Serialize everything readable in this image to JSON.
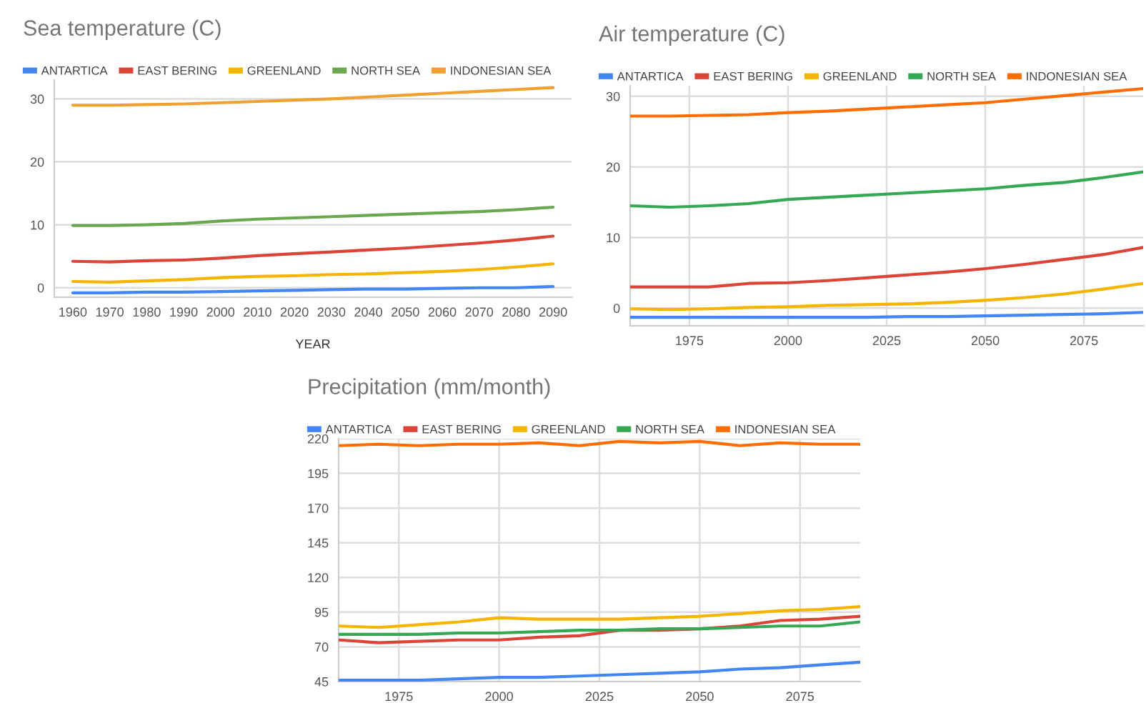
{
  "chart_data": [
    {
      "type": "line",
      "title": "Sea temperature (C)",
      "xlabel": "YEAR",
      "legend": "top",
      "grid": "y",
      "marker": "none",
      "line_style": "solid",
      "x": [
        1960,
        1970,
        1980,
        1990,
        2000,
        2010,
        2020,
        2030,
        2040,
        2050,
        2060,
        2070,
        2080,
        2090
      ],
      "xlim": [
        1955,
        2095
      ],
      "xticks": [
        1960,
        1970,
        1980,
        1990,
        2000,
        2010,
        2020,
        2030,
        2040,
        2050,
        2060,
        2070,
        2080,
        2090
      ],
      "ylim": [
        -1.5,
        33
      ],
      "yticks": [
        0,
        10,
        20,
        30
      ],
      "series": [
        {
          "name": "ANTARTICA",
          "color": "#4285f4",
          "values": [
            -0.8,
            -0.8,
            -0.7,
            -0.7,
            -0.6,
            -0.5,
            -0.4,
            -0.3,
            -0.2,
            -0.2,
            -0.1,
            0.0,
            0.0,
            0.2
          ]
        },
        {
          "name": "EAST BERING",
          "color": "#db4437",
          "values": [
            4.2,
            4.1,
            4.3,
            4.4,
            4.7,
            5.1,
            5.4,
            5.7,
            6.0,
            6.3,
            6.7,
            7.1,
            7.6,
            8.2
          ]
        },
        {
          "name": "GREENLAND",
          "color": "#f4b400",
          "values": [
            1.0,
            0.9,
            1.1,
            1.3,
            1.6,
            1.8,
            1.9,
            2.1,
            2.2,
            2.4,
            2.6,
            2.9,
            3.3,
            3.8
          ]
        },
        {
          "name": "NORTH SEA",
          "color": "#6aa84f",
          "values": [
            9.9,
            9.9,
            10.0,
            10.2,
            10.6,
            10.9,
            11.1,
            11.3,
            11.5,
            11.7,
            11.9,
            12.1,
            12.4,
            12.8
          ]
        },
        {
          "name": "INDONESIAN SEA",
          "color": "#f0a030",
          "values": [
            29.0,
            29.0,
            29.1,
            29.2,
            29.4,
            29.6,
            29.8,
            30.0,
            30.3,
            30.6,
            30.9,
            31.2,
            31.5,
            31.8
          ]
        }
      ]
    },
    {
      "type": "line",
      "title": "Air temperature (C)",
      "legend": "top",
      "grid": true,
      "marker": "none",
      "line_style": "solid",
      "x": [
        1960,
        1970,
        1980,
        1990,
        2000,
        2010,
        2020,
        2030,
        2040,
        2050,
        2060,
        2070,
        2080,
        2090
      ],
      "xlim": [
        1960,
        2090
      ],
      "xticks": [
        1975,
        2000,
        2025,
        2050,
        2075
      ],
      "ylim": [
        -2.5,
        31.5
      ],
      "yticks": [
        0,
        10,
        20,
        30
      ],
      "series": [
        {
          "name": "ANTARTICA",
          "color": "#4285f4",
          "values": [
            -1.3,
            -1.3,
            -1.3,
            -1.3,
            -1.3,
            -1.3,
            -1.3,
            -1.2,
            -1.2,
            -1.1,
            -1.0,
            -0.9,
            -0.8,
            -0.6
          ]
        },
        {
          "name": "EAST BERING",
          "color": "#db4437",
          "values": [
            3.0,
            3.0,
            3.0,
            3.5,
            3.6,
            3.9,
            4.3,
            4.7,
            5.1,
            5.6,
            6.2,
            6.9,
            7.6,
            8.6
          ]
        },
        {
          "name": "GREENLAND",
          "color": "#f4b400",
          "values": [
            -0.1,
            -0.2,
            -0.1,
            0.1,
            0.2,
            0.4,
            0.5,
            0.6,
            0.8,
            1.1,
            1.5,
            2.0,
            2.7,
            3.5
          ]
        },
        {
          "name": "NORTH SEA",
          "color": "#34a853",
          "values": [
            14.5,
            14.3,
            14.5,
            14.8,
            15.4,
            15.7,
            16.0,
            16.3,
            16.6,
            16.9,
            17.4,
            17.8,
            18.5,
            19.3
          ]
        },
        {
          "name": "INDONESIAN SEA",
          "color": "#ff6d01",
          "values": [
            27.2,
            27.2,
            27.3,
            27.4,
            27.7,
            27.9,
            28.2,
            28.5,
            28.8,
            29.1,
            29.6,
            30.1,
            30.6,
            31.1
          ]
        }
      ]
    },
    {
      "type": "line",
      "title": "Precipitation (mm/month)",
      "legend": "top",
      "grid": true,
      "marker": "none",
      "line_style": "solid",
      "x": [
        1960,
        1970,
        1980,
        1990,
        2000,
        2010,
        2020,
        2030,
        2040,
        2050,
        2060,
        2070,
        2080,
        2090
      ],
      "xlim": [
        1960,
        2090
      ],
      "xticks": [
        1975,
        2000,
        2025,
        2050,
        2075
      ],
      "ylim": [
        45,
        220
      ],
      "yticks": [
        45,
        70,
        95,
        120,
        145,
        170,
        195,
        220
      ],
      "series": [
        {
          "name": "ANTARTICA",
          "color": "#4285f4",
          "values": [
            46,
            46,
            46,
            47,
            48,
            48,
            49,
            50,
            51,
            52,
            54,
            55,
            57,
            59
          ]
        },
        {
          "name": "EAST BERING",
          "color": "#db4437",
          "values": [
            75,
            73,
            74,
            75,
            75,
            77,
            78,
            82,
            82,
            83,
            85,
            89,
            90,
            92
          ]
        },
        {
          "name": "GREENLAND",
          "color": "#f4b400",
          "values": [
            85,
            84,
            86,
            88,
            91,
            90,
            90,
            90,
            91,
            92,
            94,
            96,
            97,
            99
          ]
        },
        {
          "name": "NORTH SEA",
          "color": "#34a853",
          "values": [
            79,
            79,
            79,
            80,
            80,
            81,
            82,
            82,
            83,
            83,
            84,
            85,
            85,
            88
          ]
        },
        {
          "name": "INDONESIAN SEA",
          "color": "#ff6d01",
          "values": [
            215,
            216,
            215,
            216,
            216,
            217,
            215,
            218,
            217,
            218,
            215,
            217,
            216,
            216
          ]
        }
      ]
    }
  ]
}
